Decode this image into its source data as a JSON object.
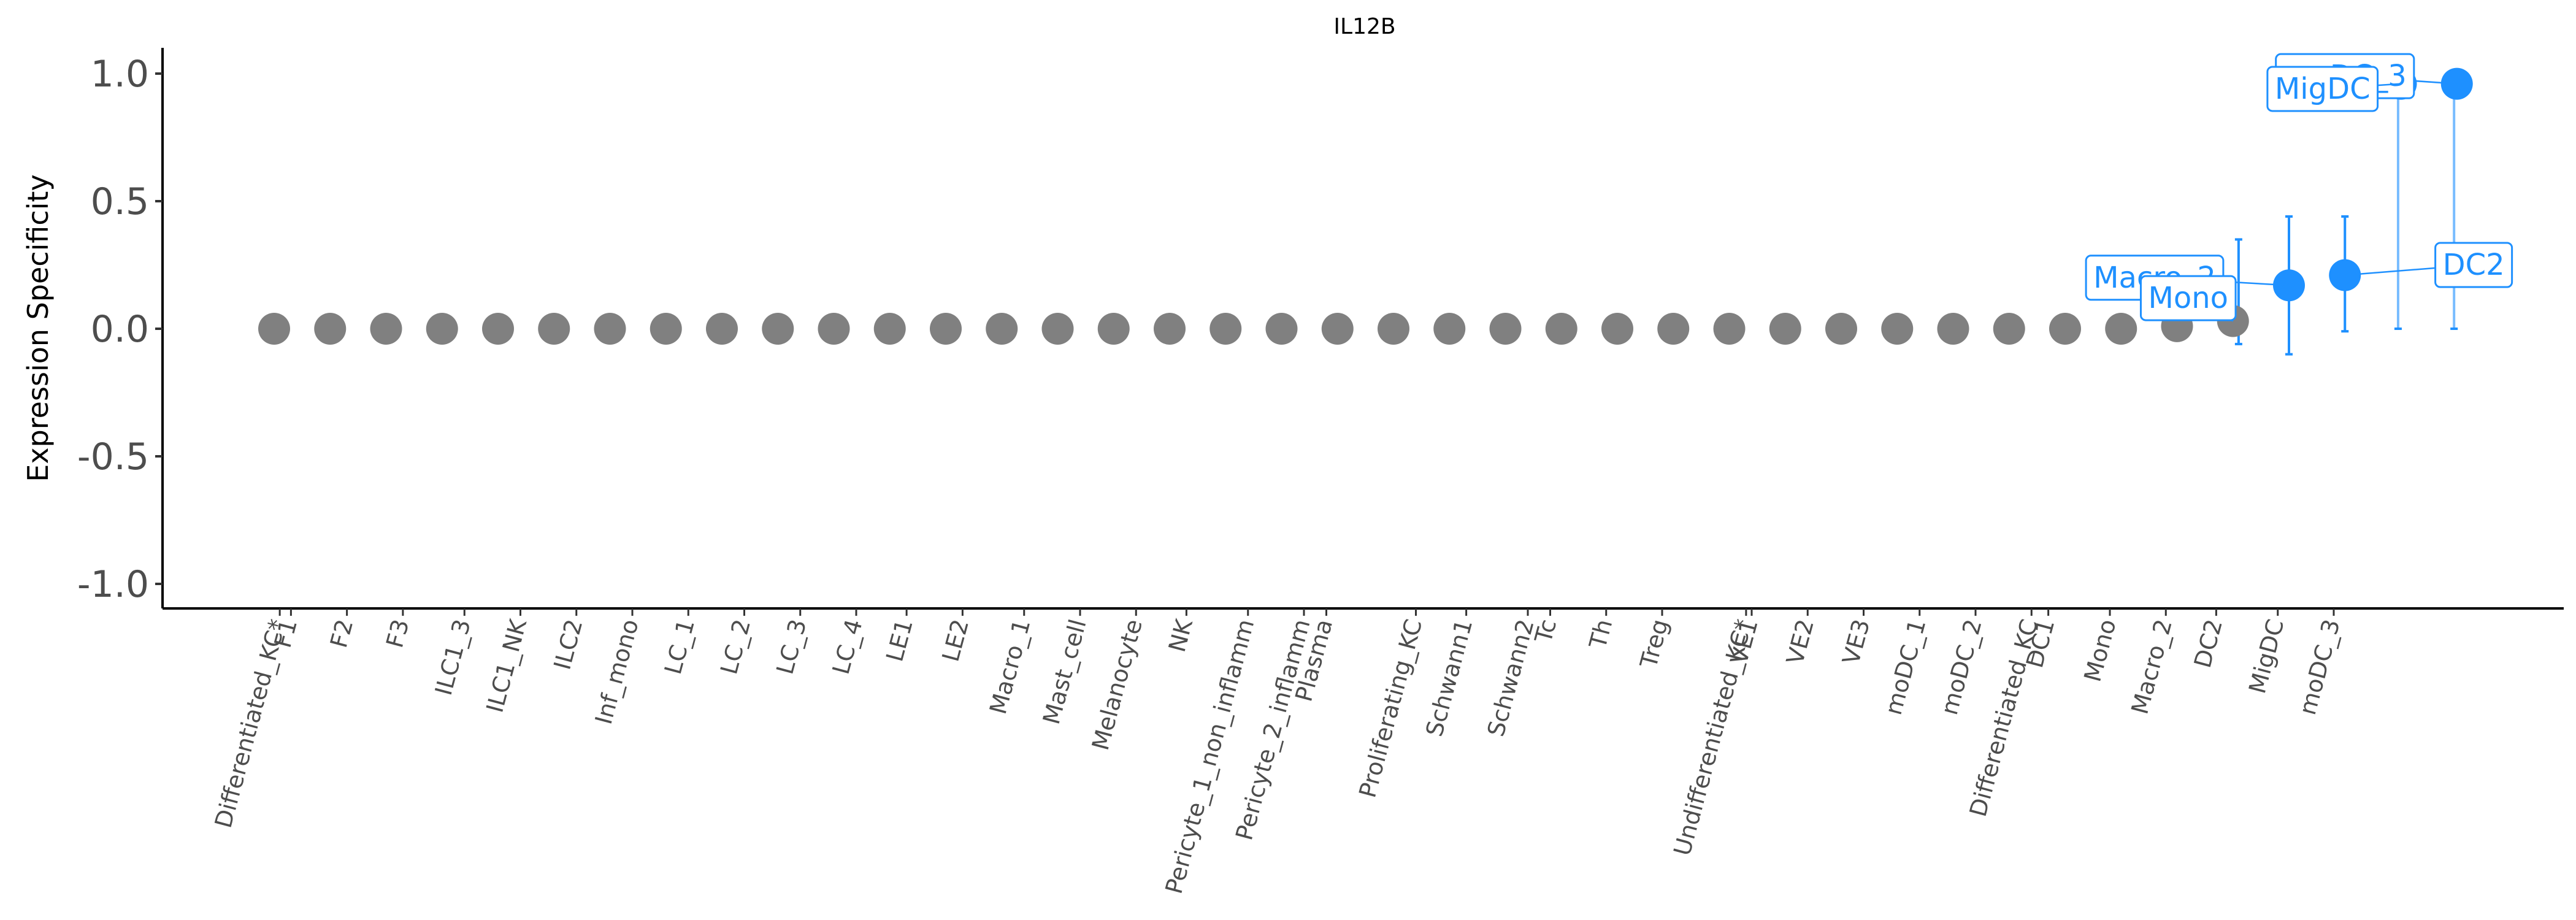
{
  "chart_data": {
    "type": "scatter",
    "title": "IL12B",
    "xlabel": "",
    "ylabel": "Expression Specificity",
    "ylim": [
      -1.1,
      1.1
    ],
    "yticks": [
      1.0,
      0.5,
      0.0,
      -0.5,
      -1.0
    ],
    "ytick_labels": [
      "1.0",
      "0.5",
      "0.0",
      "-0.5",
      "-1.0"
    ],
    "grid": false,
    "legend": "none",
    "colors": {
      "default": "#808080",
      "highlight": "#1E90FF",
      "axis": "#000000"
    },
    "categories": [
      "Differentiated_KC*",
      "F1",
      "F2",
      "F3",
      "ILC1_3",
      "ILC1_NK",
      "ILC2",
      "Inf_mono",
      "LC_1",
      "LC_2",
      "LC_3",
      "LC_4",
      "LE1",
      "LE2",
      "Macro_1",
      "Mast_cell",
      "Melanocyte",
      "NK",
      "Pericyte_1_non_inflamm",
      "Pericyte_2_inflamm",
      "Plasma",
      "Proliferating_KC",
      "Schwann1",
      "Schwann2",
      "Tc",
      "Th",
      "Treg",
      "Undifferentiated_KC*",
      "VE1",
      "VE2",
      "VE3",
      "moDC_1",
      "moDC_2",
      "Differentiated_KC",
      "DC1",
      "Mono",
      "Macro_2",
      "DC2",
      "MigDC",
      "moDC_3"
    ],
    "x_positions": [
      1,
      2,
      3,
      4,
      5,
      6,
      7,
      8,
      9,
      10,
      11,
      12,
      13,
      14,
      15,
      16,
      17,
      18,
      19,
      20,
      21,
      22,
      23,
      24,
      25,
      26,
      27,
      28,
      29,
      30,
      31,
      32,
      33,
      34,
      35,
      36,
      37,
      38,
      39,
      40
    ],
    "tick_x": [
      1.1,
      1.3,
      2.3,
      3.3,
      4.4,
      5.4,
      6.4,
      7.4,
      8.4,
      9.4,
      10.4,
      11.4,
      12.3,
      13.3,
      14.4,
      15.4,
      16.4,
      17.3,
      18.4,
      19.4,
      19.8,
      21.4,
      22.3,
      23.4,
      23.8,
      24.8,
      25.8,
      27.3,
      27.4,
      28.4,
      29.4,
      30.4,
      31.4,
      32.4,
      32.7,
      33.8,
      34.8,
      35.7,
      36.8,
      37.8
    ],
    "values": [
      0,
      0,
      0,
      0,
      0,
      0,
      0,
      0,
      0,
      0,
      0,
      0,
      0,
      0,
      0,
      0,
      0,
      0,
      0,
      0,
      0,
      0,
      0,
      0,
      0,
      0,
      0,
      0,
      0,
      0,
      0,
      0,
      0,
      0,
      0.01,
      0.03,
      0.17,
      0.21,
      0.96,
      0.96
    ],
    "highlighted": [
      false,
      false,
      false,
      false,
      false,
      false,
      false,
      false,
      false,
      false,
      false,
      false,
      false,
      false,
      false,
      false,
      false,
      false,
      false,
      false,
      false,
      false,
      false,
      false,
      false,
      false,
      false,
      false,
      false,
      false,
      false,
      false,
      false,
      false,
      false,
      false,
      true,
      true,
      true,
      true
    ],
    "error_bars": [
      {
        "x": 36.1,
        "low": -0.06,
        "high": 0.35
      },
      {
        "x": 37.0,
        "low": -0.1,
        "high": 0.44
      },
      {
        "x": 38.0,
        "low": -0.01,
        "high": 0.44
      },
      {
        "x": 38.95,
        "low": 0.0,
        "high": 0.96
      },
      {
        "x": 39.95,
        "low": 0.0,
        "high": 0.96
      }
    ],
    "point_labels": [
      {
        "text": "moDC_3",
        "point": 39,
        "color": "#1E90FF",
        "anchor_x": 38.0,
        "anchor_y": 0.99
      },
      {
        "text": "MigDC",
        "point": 38,
        "color": "#1E90FF",
        "anchor_x": 37.6,
        "anchor_y": 0.94
      },
      {
        "text": "Macro_2",
        "point": 36,
        "color": "#1E90FF",
        "anchor_x": 34.6,
        "anchor_y": 0.2
      },
      {
        "text": "DC2",
        "point": 37,
        "color": "#1E90FF",
        "anchor_x": 40.3,
        "anchor_y": 0.25
      },
      {
        "text": "Mono",
        "point": 35,
        "color": "#1E90FF",
        "anchor_x": 35.2,
        "anchor_y": 0.12
      }
    ]
  }
}
